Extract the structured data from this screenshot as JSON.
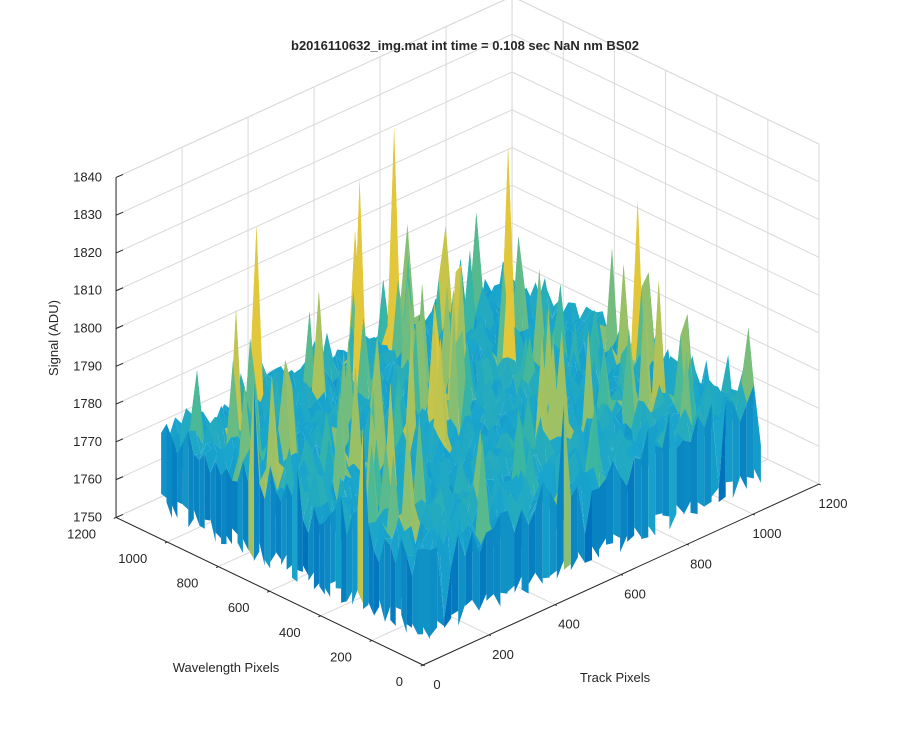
{
  "chart_data": {
    "type": "surface-3d",
    "title": "b2016110632_img.mat int time = 0.108 sec  NaN nm BS02",
    "xlabel": "Track Pixels",
    "ylabel": "Wavelength Pixels",
    "zlabel": "Signal (ADU)",
    "xlim": [
      0,
      1200
    ],
    "ylim": [
      0,
      1200
    ],
    "zlim": [
      1750,
      1840
    ],
    "x_ticks": [
      "0",
      "200",
      "400",
      "600",
      "800",
      "1000",
      "1200"
    ],
    "y_ticks": [
      "0",
      "200",
      "400",
      "600",
      "800",
      "1000",
      "1200"
    ],
    "z_ticks": [
      "1750",
      "1760",
      "1770",
      "1780",
      "1790",
      "1800",
      "1810",
      "1820",
      "1830",
      "1840"
    ],
    "data_extent": {
      "x": [
        0,
        1024
      ],
      "y": [
        0,
        1024
      ]
    },
    "surface": {
      "baseline_signal": 1778,
      "signal_range": [
        1752,
        1838
      ],
      "peak_signal": 1836,
      "colormap": "parula",
      "note_visible": "noisy surface, mostly 1765–1795 ADU with spikes up to ~1835"
    },
    "grid": true,
    "colors": {
      "axis": "#262626",
      "grid": "#d9d9d9",
      "surface_low": "#0072bd",
      "surface_mid": "#3db7a0",
      "surface_high": "#e2c73a"
    }
  }
}
